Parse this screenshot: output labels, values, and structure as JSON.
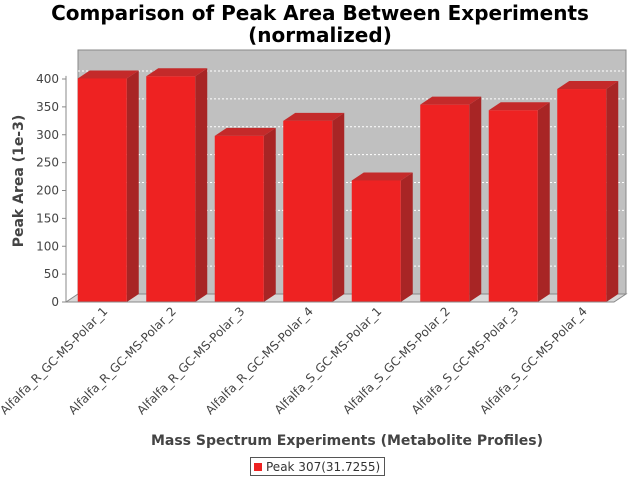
{
  "chart_data": {
    "type": "bar",
    "title_lines": [
      "Comparison of Peak Area Between Experiments",
      "(normalized)"
    ],
    "xlabel": "Mass Spectrum Experiments (Metabolite Profiles)",
    "ylabel": "Peak Area (1e-3)",
    "ylim": [
      0,
      420
    ],
    "yticks": [
      0,
      50,
      100,
      150,
      200,
      250,
      300,
      350,
      400
    ],
    "grid": true,
    "legend_position": "bottom",
    "categories": [
      "Alfalfa_R_GC-MS-Polar_1",
      "Alfalfa_R_GC-MS-Polar_2",
      "Alfalfa_R_GC-MS-Polar_3",
      "Alfalfa_R_GC-MS-Polar_4",
      "Alfalfa_S_GC-MS-Polar_1",
      "Alfalfa_S_GC-MS-Polar_2",
      "Alfalfa_S_GC-MS-Polar_3",
      "Alfalfa_S_GC-MS-Polar_4"
    ],
    "series": [
      {
        "name": "Peak 307(31.7255)",
        "color": "#ee2222",
        "values": [
          401,
          405,
          298,
          325,
          218,
          354,
          344,
          382
        ]
      }
    ]
  }
}
